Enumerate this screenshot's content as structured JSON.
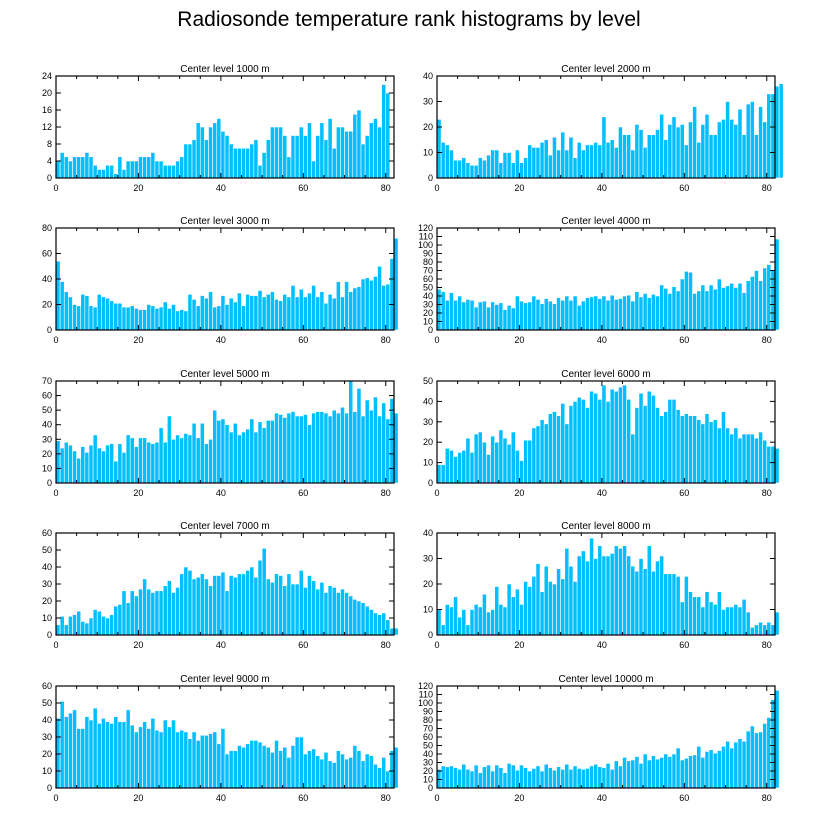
{
  "title": "Radiosonde temperature rank histograms by level",
  "style": {
    "bar_color": "#00bfff",
    "bar_edge": "#ffffff",
    "axis_color": "#000000"
  },
  "chart_data": [
    {
      "type": "bar",
      "title": "Center level 1000 m",
      "xlim": [
        0,
        82
      ],
      "ylim": [
        0,
        24
      ],
      "xticks": [
        0,
        20,
        40,
        60,
        80
      ],
      "yticks": [
        0,
        4,
        8,
        12,
        16,
        20,
        24
      ],
      "yaxis": "left",
      "values": [
        4,
        6,
        5,
        4,
        5,
        5,
        5,
        6,
        5,
        3,
        2,
        2,
        3,
        3,
        1,
        5,
        2,
        4,
        4,
        4,
        5,
        5,
        5,
        6,
        4,
        4,
        3,
        3,
        3,
        4,
        5,
        8,
        8,
        9,
        13,
        12,
        9,
        12,
        13,
        14,
        11,
        10,
        8,
        7,
        7,
        7,
        7,
        8,
        9,
        3,
        6,
        9,
        12,
        12,
        12,
        10,
        5,
        10,
        10,
        12,
        10,
        13,
        4,
        10,
        13,
        9,
        14,
        7,
        12,
        12,
        11,
        11,
        15,
        16,
        8,
        10,
        13,
        14,
        12,
        22,
        20
      ]
    },
    {
      "type": "bar",
      "title": "Center level 2000 m",
      "xlim": [
        0,
        82
      ],
      "ylim": [
        0,
        40
      ],
      "xticks": [
        0,
        20,
        40,
        60,
        80
      ],
      "yticks": [
        0,
        10,
        20,
        30,
        40
      ],
      "yaxis": "right",
      "values": [
        23,
        14,
        13,
        11,
        7,
        7,
        8,
        6,
        5,
        5,
        8,
        7,
        9,
        11,
        11,
        6,
        10,
        10,
        6,
        11,
        6,
        8,
        13,
        12,
        12,
        14,
        15,
        9,
        16,
        11,
        18,
        11,
        16,
        8,
        14,
        11,
        13,
        13,
        14,
        13,
        24,
        14,
        15,
        12,
        20,
        17,
        17,
        11,
        21,
        19,
        12,
        17,
        17,
        19,
        25,
        15,
        21,
        24,
        20,
        21,
        13,
        22,
        28,
        14,
        21,
        25,
        17,
        17,
        22,
        23,
        30,
        23,
        21,
        27,
        17,
        29,
        30,
        17,
        28,
        22,
        33,
        33,
        36,
        37
      ]
    },
    {
      "type": "bar",
      "title": "Center level 3000 m",
      "xlim": [
        0,
        82
      ],
      "ylim": [
        0,
        80
      ],
      "xticks": [
        0,
        20,
        40,
        60,
        80
      ],
      "yticks": [
        0,
        20,
        40,
        60,
        80
      ],
      "yaxis": "left",
      "values": [
        54,
        38,
        30,
        26,
        20,
        19,
        28,
        27,
        19,
        18,
        28,
        26,
        25,
        23,
        21,
        21,
        18,
        18,
        19,
        17,
        16,
        16,
        20,
        19,
        17,
        18,
        22,
        17,
        20,
        15,
        16,
        15,
        28,
        24,
        19,
        27,
        25,
        30,
        18,
        19,
        27,
        20,
        25,
        22,
        29,
        19,
        28,
        27,
        27,
        31,
        26,
        28,
        30,
        24,
        23,
        28,
        26,
        35,
        26,
        32,
        26,
        29,
        35,
        26,
        30,
        21,
        28,
        25,
        38,
        26,
        38,
        30,
        33,
        34,
        40,
        41,
        39,
        42,
        50,
        35,
        36,
        56,
        72
      ]
    },
    {
      "type": "bar",
      "title": "Center level 4000 m",
      "xlim": [
        0,
        82
      ],
      "ylim": [
        0,
        120
      ],
      "xticks": [
        0,
        20,
        40,
        60,
        80
      ],
      "yticks": [
        0,
        10,
        20,
        30,
        40,
        50,
        60,
        70,
        80,
        90,
        100,
        110,
        120
      ],
      "yaxis": "right",
      "values": [
        48,
        45,
        35,
        44,
        35,
        40,
        33,
        36,
        35,
        27,
        33,
        34,
        27,
        33,
        30,
        32,
        24,
        29,
        26,
        40,
        34,
        32,
        33,
        40,
        36,
        31,
        37,
        34,
        31,
        38,
        35,
        40,
        35,
        40,
        29,
        34,
        38,
        39,
        40,
        37,
        40,
        35,
        41,
        36,
        37,
        40,
        41,
        34,
        45,
        39,
        43,
        38,
        42,
        40,
        53,
        49,
        43,
        51,
        46,
        60,
        69,
        68,
        43,
        46,
        53,
        46,
        53,
        48,
        60,
        50,
        52,
        55,
        50,
        55,
        44,
        58,
        63,
        70,
        58,
        73,
        77,
        70,
        107
      ]
    },
    {
      "type": "bar",
      "title": "Center level 5000 m",
      "xlim": [
        0,
        82
      ],
      "ylim": [
        0,
        70
      ],
      "xticks": [
        0,
        20,
        40,
        60,
        80
      ],
      "yticks": [
        0,
        10,
        20,
        30,
        40,
        50,
        60,
        70
      ],
      "yaxis": "left",
      "values": [
        29,
        24,
        28,
        26,
        22,
        17,
        25,
        21,
        26,
        33,
        24,
        22,
        26,
        27,
        15,
        27,
        21,
        33,
        31,
        25,
        31,
        31,
        28,
        27,
        28,
        38,
        28,
        46,
        30,
        33,
        31,
        34,
        33,
        41,
        31,
        41,
        27,
        30,
        50,
        43,
        44,
        40,
        35,
        41,
        33,
        35,
        37,
        44,
        35,
        42,
        38,
        43,
        43,
        48,
        47,
        45,
        48,
        49,
        46,
        46,
        47,
        40,
        48,
        49,
        49,
        48,
        46,
        50,
        48,
        52,
        48,
        70,
        49,
        65,
        46,
        57,
        50,
        59,
        46,
        55,
        44,
        58,
        48
      ]
    },
    {
      "type": "bar",
      "title": "Center level 6000 m",
      "xlim": [
        0,
        82
      ],
      "ylim": [
        0,
        50
      ],
      "xticks": [
        0,
        20,
        40,
        60,
        80
      ],
      "yticks": [
        0,
        10,
        20,
        30,
        40,
        50
      ],
      "yaxis": "right",
      "values": [
        9,
        9,
        17,
        16,
        13,
        15,
        16,
        22,
        15,
        24,
        25,
        20,
        14,
        23,
        20,
        26,
        22,
        19,
        25,
        16,
        11,
        21,
        21,
        27,
        28,
        31,
        29,
        34,
        35,
        33,
        39,
        29,
        38,
        40,
        42,
        41,
        37,
        45,
        44,
        41,
        48,
        40,
        46,
        45,
        47,
        48,
        41,
        24,
        37,
        44,
        38,
        45,
        43,
        37,
        33,
        35,
        41,
        41,
        36,
        33,
        34,
        33,
        33,
        31,
        29,
        34,
        30,
        31,
        27,
        35,
        27,
        24,
        27,
        22,
        24,
        24,
        24,
        22,
        25,
        21,
        18,
        18,
        17
      ]
    },
    {
      "type": "bar",
      "title": "Center level 7000 m",
      "xlim": [
        0,
        82
      ],
      "ylim": [
        0,
        60
      ],
      "xticks": [
        0,
        20,
        40,
        60,
        80
      ],
      "yticks": [
        0,
        10,
        20,
        30,
        40,
        50,
        60
      ],
      "yaxis": "left",
      "values": [
        6,
        11,
        6,
        11,
        12,
        14,
        8,
        7,
        10,
        15,
        14,
        11,
        10,
        12,
        17,
        18,
        26,
        19,
        26,
        23,
        27,
        33,
        27,
        25,
        26,
        26,
        29,
        32,
        25,
        28,
        36,
        40,
        38,
        33,
        34,
        36,
        33,
        29,
        35,
        35,
        37,
        26,
        35,
        34,
        36,
        36,
        38,
        40,
        34,
        44,
        51,
        33,
        31,
        36,
        35,
        29,
        36,
        30,
        30,
        38,
        28,
        35,
        32,
        27,
        31,
        25,
        29,
        28,
        25,
        27,
        25,
        23,
        21,
        20,
        19,
        17,
        15,
        13,
        12,
        13,
        9,
        4,
        4
      ]
    },
    {
      "type": "bar",
      "title": "Center level 8000 m",
      "xlim": [
        0,
        82
      ],
      "ylim": [
        0,
        40
      ],
      "xticks": [
        0,
        20,
        40,
        60,
        80
      ],
      "yticks": [
        0,
        10,
        20,
        30,
        40
      ],
      "yaxis": "right",
      "values": [
        10,
        4,
        12,
        11,
        15,
        7,
        10,
        4,
        10,
        12,
        11,
        16,
        9,
        10,
        19,
        12,
        11,
        20,
        15,
        18,
        12,
        21,
        19,
        23,
        28,
        17,
        27,
        21,
        20,
        26,
        22,
        34,
        27,
        21,
        31,
        33,
        29,
        38,
        30,
        35,
        31,
        31,
        32,
        35,
        34,
        35,
        31,
        27,
        25,
        30,
        26,
        35,
        25,
        29,
        31,
        24,
        24,
        24,
        23,
        13,
        23,
        17,
        15,
        15,
        11,
        17,
        13,
        12,
        17,
        10,
        11,
        11,
        12,
        11,
        14,
        9,
        3,
        4,
        5,
        4,
        5,
        4,
        9
      ]
    },
    {
      "type": "bar",
      "title": "Center level 9000 m",
      "xlim": [
        0,
        82
      ],
      "ylim": [
        0,
        60
      ],
      "xticks": [
        0,
        20,
        40,
        60,
        80
      ],
      "yticks": [
        0,
        10,
        20,
        30,
        40,
        50,
        60
      ],
      "yaxis": "left",
      "values": [
        41,
        51,
        42,
        44,
        46,
        35,
        35,
        42,
        40,
        47,
        38,
        41,
        39,
        38,
        42,
        39,
        39,
        46,
        37,
        33,
        36,
        39,
        35,
        41,
        34,
        33,
        40,
        36,
        40,
        33,
        34,
        33,
        29,
        33,
        28,
        31,
        31,
        32,
        33,
        26,
        35,
        20,
        22,
        22,
        25,
        24,
        26,
        28,
        28,
        27,
        25,
        24,
        21,
        28,
        22,
        24,
        18,
        25,
        30,
        30,
        20,
        22,
        23,
        19,
        17,
        21,
        16,
        15,
        22,
        20,
        17,
        18,
        25,
        22,
        16,
        20,
        19,
        14,
        12,
        18,
        10,
        22,
        24
      ]
    },
    {
      "type": "bar",
      "title": "Center level 10000 m",
      "xlim": [
        0,
        82
      ],
      "ylim": [
        0,
        120
      ],
      "xticks": [
        0,
        20,
        40,
        60,
        80
      ],
      "yticks": [
        0,
        10,
        20,
        30,
        40,
        50,
        60,
        70,
        80,
        90,
        100,
        110,
        120
      ],
      "yaxis": "right",
      "values": [
        22,
        26,
        25,
        26,
        24,
        22,
        28,
        22,
        20,
        27,
        18,
        25,
        27,
        20,
        27,
        24,
        18,
        29,
        27,
        21,
        27,
        24,
        20,
        23,
        26,
        20,
        28,
        24,
        21,
        25,
        22,
        28,
        22,
        26,
        23,
        22,
        23,
        26,
        28,
        25,
        24,
        29,
        22,
        32,
        26,
        36,
        32,
        33,
        37,
        29,
        40,
        33,
        38,
        34,
        36,
        40,
        37,
        40,
        47,
        33,
        35,
        38,
        39,
        49,
        36,
        43,
        45,
        41,
        44,
        49,
        55,
        47,
        54,
        58,
        55,
        67,
        73,
        65,
        66,
        76,
        83,
        104,
        115
      ]
    }
  ]
}
